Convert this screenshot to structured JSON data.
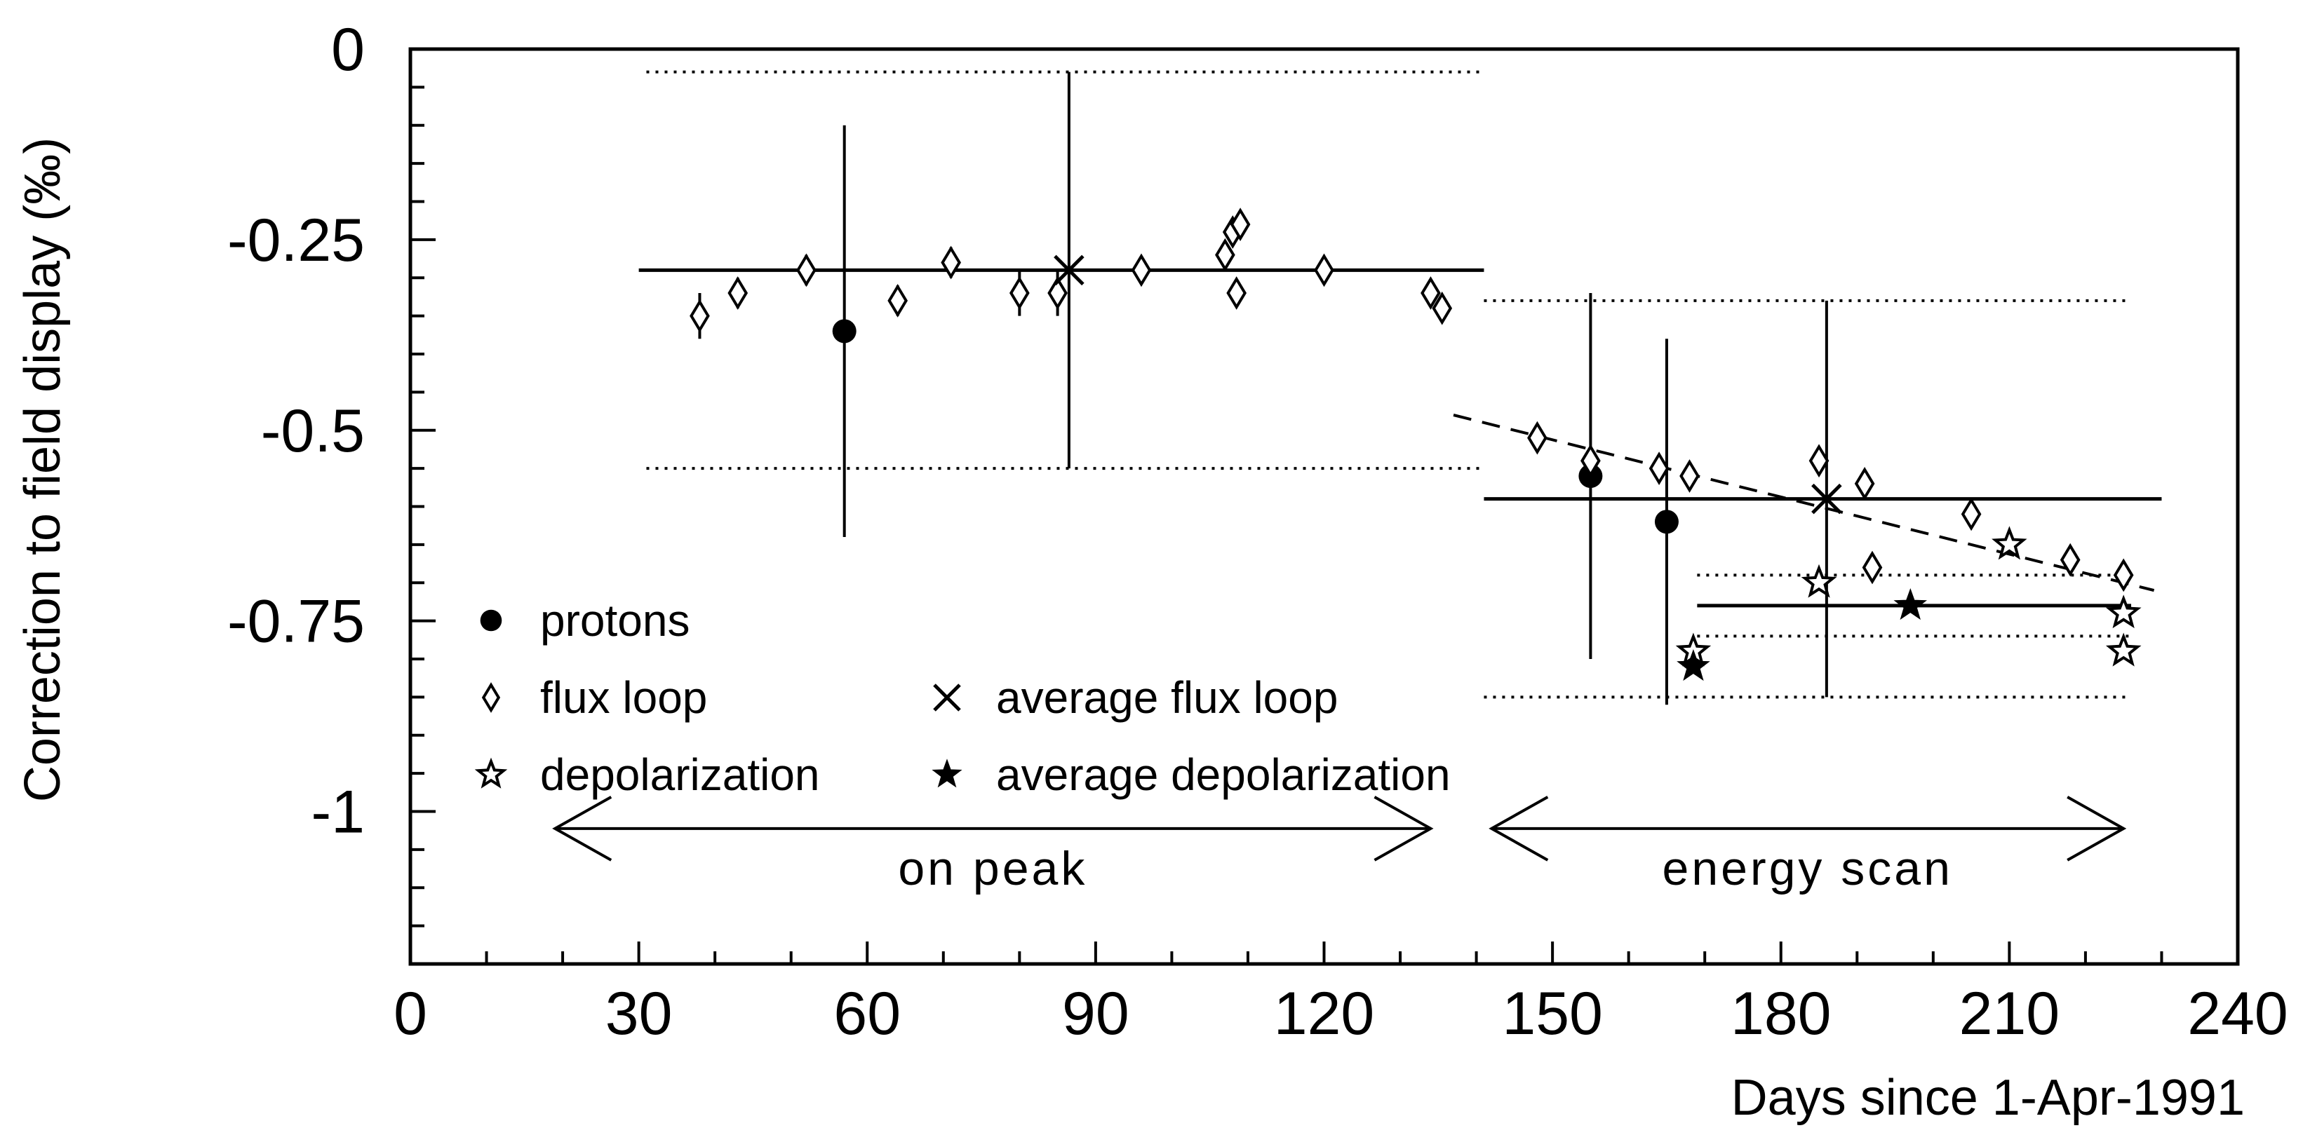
{
  "chart_data": {
    "type": "scatter",
    "xlabel": "Days since 1-Apr-1991",
    "ylabel": "Correction to field display (‰)",
    "xlim": [
      0,
      240
    ],
    "ylim": [
      -1.2,
      0
    ],
    "xticks": [
      0,
      30,
      60,
      90,
      120,
      150,
      180,
      210,
      240
    ],
    "xtick_labels": [
      "0",
      "30",
      "60",
      "90",
      "120",
      "150",
      "180",
      "210",
      "240"
    ],
    "yticks": [
      0,
      -0.25,
      -0.5,
      -0.75,
      -1
    ],
    "ytick_labels": [
      "0",
      "-0.25",
      "-0.5",
      "-0.75",
      "-1"
    ],
    "grid": false,
    "legend_position": "bottom-left",
    "series": [
      {
        "name": "protons",
        "marker": "filled-circle",
        "points": [
          {
            "x": 57,
            "y": -0.37,
            "err": 0.27
          },
          {
            "x": 155,
            "y": -0.56,
            "err": 0.24
          },
          {
            "x": 165,
            "y": -0.62,
            "err": 0.24
          }
        ]
      },
      {
        "name": "flux loop",
        "marker": "open-diamond",
        "points": [
          {
            "x": 38,
            "y": -0.35,
            "err": 0.03
          },
          {
            "x": 43,
            "y": -0.32,
            "err": 0.02
          },
          {
            "x": 52,
            "y": -0.29,
            "err": 0.02
          },
          {
            "x": 64,
            "y": -0.33,
            "err": 0.02
          },
          {
            "x": 71,
            "y": -0.28,
            "err": 0.02
          },
          {
            "x": 80,
            "y": -0.32,
            "err": 0.03
          },
          {
            "x": 85,
            "y": -0.32,
            "err": 0.03
          },
          {
            "x": 96,
            "y": -0.29,
            "err": 0.015
          },
          {
            "x": 107,
            "y": -0.27,
            "err": 0.015
          },
          {
            "x": 108,
            "y": -0.24,
            "err": 0.015
          },
          {
            "x": 109,
            "y": -0.23,
            "err": 0.015
          },
          {
            "x": 108.5,
            "y": -0.32,
            "err": 0.015
          },
          {
            "x": 120,
            "y": -0.29,
            "err": 0.015
          },
          {
            "x": 134,
            "y": -0.32,
            "err": 0.015
          },
          {
            "x": 135.5,
            "y": -0.34,
            "err": 0.015
          },
          {
            "x": 148,
            "y": -0.51,
            "err": 0.015
          },
          {
            "x": 155,
            "y": -0.54,
            "err": 0.015
          },
          {
            "x": 164,
            "y": -0.55,
            "err": 0.015
          },
          {
            "x": 168,
            "y": -0.56,
            "err": 0.015
          },
          {
            "x": 185,
            "y": -0.54,
            "err": 0.015
          },
          {
            "x": 191,
            "y": -0.57,
            "err": 0.015
          },
          {
            "x": 192,
            "y": -0.68,
            "err": 0.015
          },
          {
            "x": 205,
            "y": -0.61,
            "err": 0.015
          },
          {
            "x": 218,
            "y": -0.67,
            "err": 0.015
          },
          {
            "x": 225,
            "y": -0.69,
            "err": 0.015
          }
        ]
      },
      {
        "name": "average flux loop",
        "marker": "cross",
        "points": [
          {
            "x": 86.5,
            "y": -0.29
          },
          {
            "x": 186,
            "y": -0.59
          }
        ]
      },
      {
        "name": "depolarization",
        "marker": "open-star",
        "points": [
          {
            "x": 168.5,
            "y": -0.79
          },
          {
            "x": 185,
            "y": -0.7
          },
          {
            "x": 210,
            "y": -0.65
          },
          {
            "x": 225,
            "y": -0.74
          },
          {
            "x": 225,
            "y": -0.79
          }
        ]
      },
      {
        "name": "average depolarization",
        "marker": "filled-star",
        "points": [
          {
            "x": 168.5,
            "y": -0.81
          },
          {
            "x": 197,
            "y": -0.73
          }
        ]
      }
    ],
    "error_bars": [
      {
        "x": 86.5,
        "y_low": -0.55,
        "y_high": -0.03
      },
      {
        "x": 186,
        "y_low": -0.85,
        "y_high": -0.33
      }
    ],
    "reference_lines": [
      {
        "style": "solid",
        "y": -0.29,
        "x_start": 30,
        "x_end": 141
      },
      {
        "style": "dotted",
        "y": -0.03,
        "x_start": 31,
        "x_end": 141
      },
      {
        "style": "dotted",
        "y": -0.55,
        "x_start": 31,
        "x_end": 141
      },
      {
        "style": "solid",
        "y": -0.59,
        "x_start": 141,
        "x_end": 230
      },
      {
        "style": "dotted",
        "y": -0.33,
        "x_start": 141,
        "x_end": 226
      },
      {
        "style": "dotted",
        "y": -0.85,
        "x_start": 141,
        "x_end": 226
      },
      {
        "style": "solid",
        "y": -0.73,
        "x_start": 169,
        "x_end": 226
      },
      {
        "style": "dotted",
        "y": -0.69,
        "x_start": 169,
        "x_end": 226
      },
      {
        "style": "dotted",
        "y": -0.77,
        "x_start": 169,
        "x_end": 226
      },
      {
        "style": "dashed",
        "x1": 137,
        "y1": -0.48,
        "x2": 229,
        "y2": -0.71
      }
    ],
    "annotations": [
      {
        "text": "on peak",
        "x_start": 19,
        "x_end": 134,
        "y": -1.05
      },
      {
        "text": "energy scan",
        "x_start": 142,
        "x_end": 225,
        "y": -1.05
      }
    ]
  }
}
